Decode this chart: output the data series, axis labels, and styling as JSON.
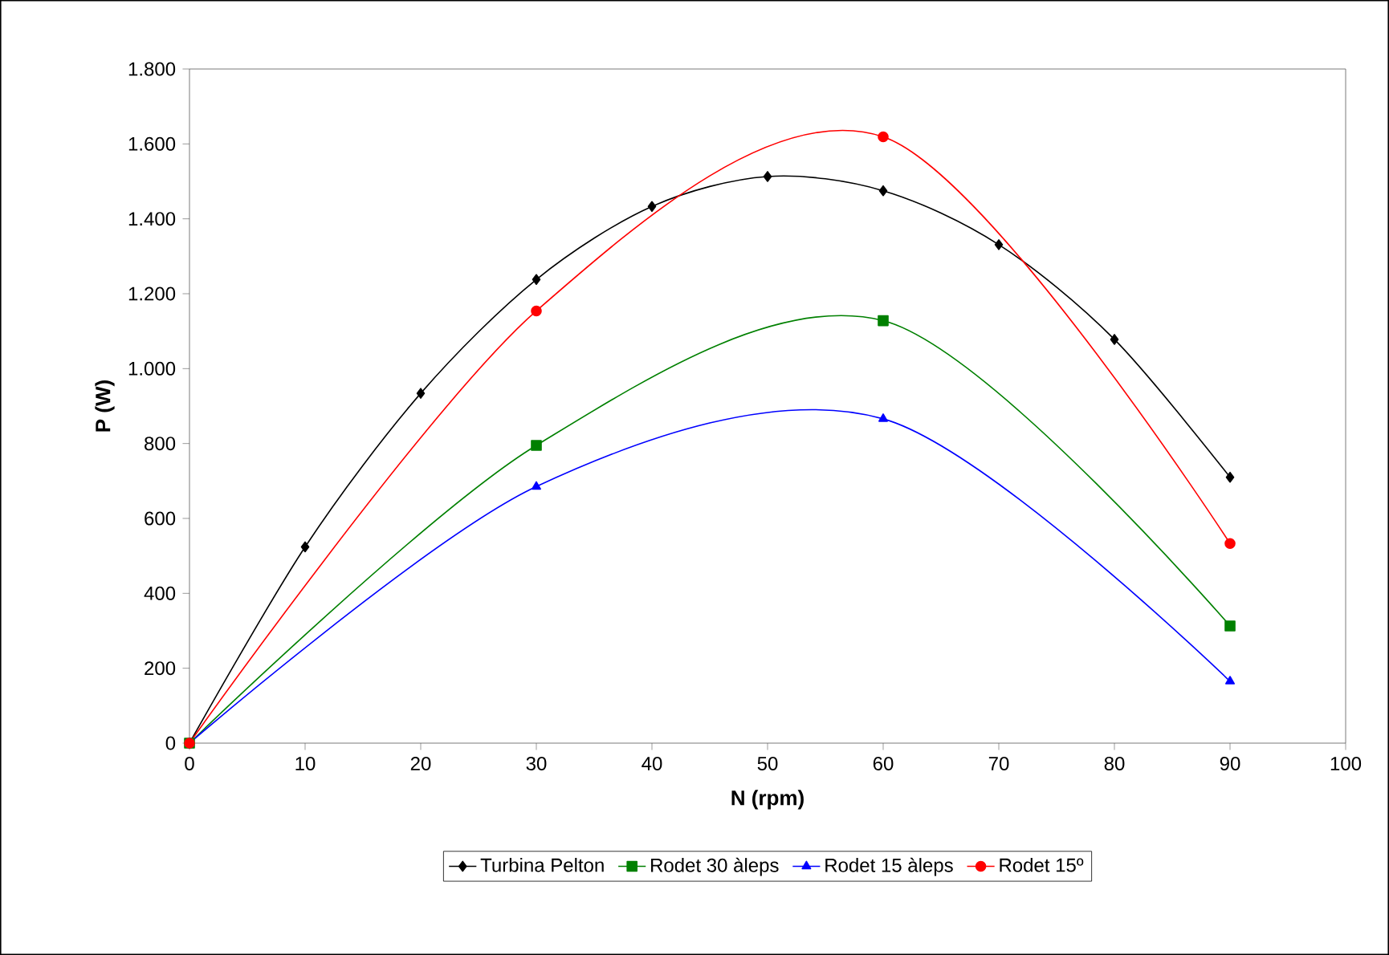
{
  "chart_data": {
    "type": "line",
    "xlabel": "N (rpm)",
    "ylabel": "P (W)",
    "xlim": [
      0,
      100
    ],
    "xticks": [
      0,
      10,
      20,
      30,
      40,
      50,
      60,
      70,
      80,
      90,
      100
    ],
    "ylim": [
      0,
      1800
    ],
    "yticks": [
      0,
      200,
      400,
      600,
      800,
      {
        "value": 1000,
        "label": "1.000"
      },
      {
        "value": 1200,
        "label": "1.200"
      },
      {
        "value": 1400,
        "label": "1.400"
      },
      {
        "value": 1600,
        "label": "1.600"
      },
      {
        "value": 1800,
        "label": "1.800"
      }
    ],
    "grid": false,
    "legend": "bottom",
    "line_style": "solid",
    "series": [
      {
        "name": "Turbina Pelton",
        "color": "#000000",
        "marker": "diamond",
        "x": [
          0,
          10,
          20,
          30,
          40,
          50,
          60,
          70,
          80,
          90
        ],
        "values": [
          0,
          524,
          934,
          1238,
          1433,
          1513,
          1475,
          1331,
          1078,
          710
        ]
      },
      {
        "name": "Rodet 30 àleps",
        "color": "#008000",
        "marker": "square",
        "x": [
          0,
          30,
          60,
          90
        ],
        "values": [
          0,
          795,
          1128,
          313
        ]
      },
      {
        "name": "Rodet 15 àleps",
        "color": "#0000ff",
        "marker": "triangle",
        "x": [
          0,
          30,
          60,
          90
        ],
        "values": [
          0,
          685,
          866,
          165
        ]
      },
      {
        "name": "Rodet 15º",
        "color": "#ff0000",
        "marker": "circle",
        "x": [
          0,
          30,
          60,
          90
        ],
        "values": [
          0,
          1154,
          1619,
          533
        ]
      }
    ]
  }
}
